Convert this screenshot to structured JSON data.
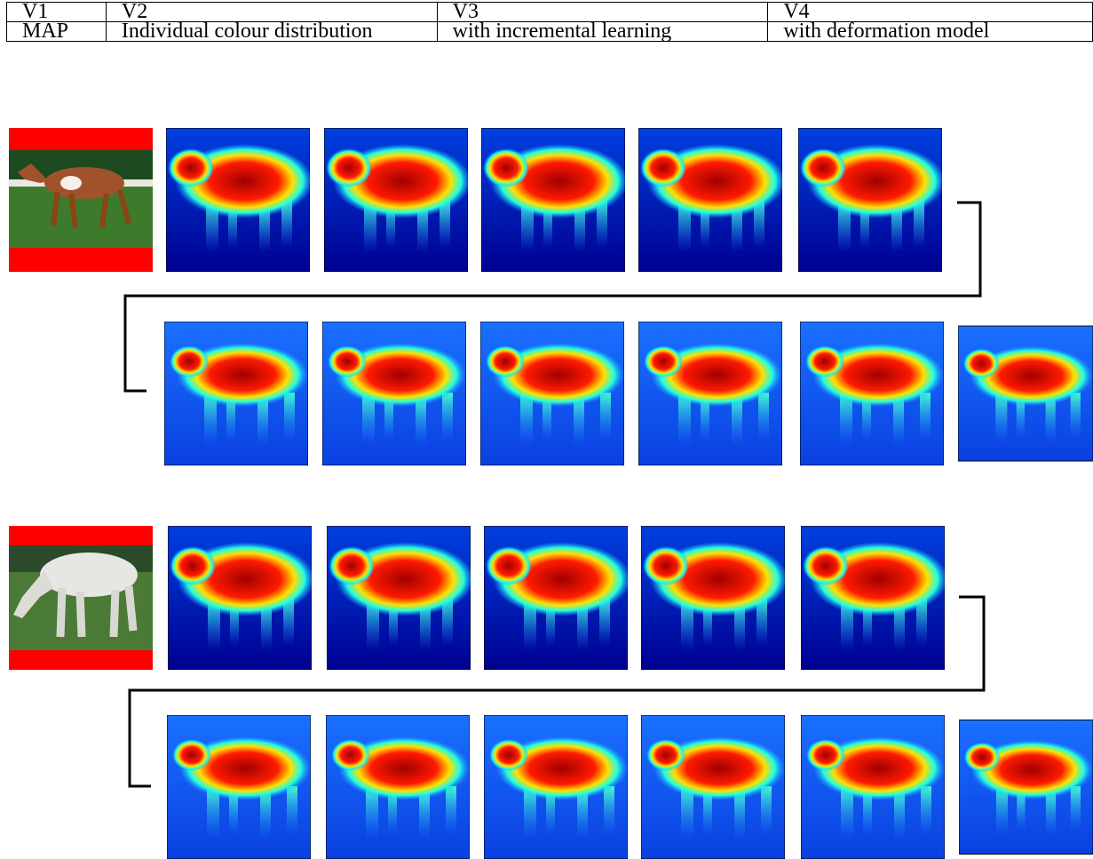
{
  "table": {
    "rows": [
      [
        "V1",
        "V2",
        "V3",
        "V4"
      ],
      [
        "MAP",
        "Individual colour distribution",
        "with incremental learning",
        "with deformation model"
      ]
    ]
  }
}
